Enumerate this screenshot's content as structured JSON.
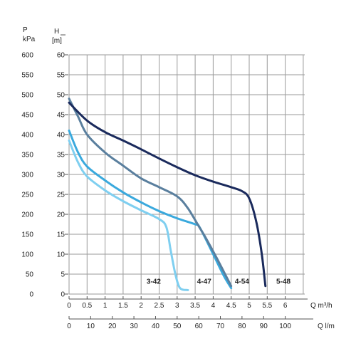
{
  "chart_data": {
    "type": "line",
    "left_axis_label_top": "P",
    "left_axis_label_bottom": "kPa",
    "right_axis_label_top": "H",
    "right_axis_label_bottom": "[m]",
    "bottom_axis_label_1": "Q m³/h",
    "bottom_axis_label_2": "Q l/m",
    "ylim": [
      0,
      60
    ],
    "xlim": [
      0,
      6.5
    ],
    "grid": true,
    "h_ticks": [
      "0",
      "5",
      "10",
      "15",
      "20",
      "25",
      "30",
      "35",
      "40",
      "45",
      "50",
      "55",
      "60"
    ],
    "p_ticks": [
      "0",
      "50",
      "100",
      "150",
      "200",
      "250",
      "300",
      "350",
      "400",
      "450",
      "500",
      "550",
      "600"
    ],
    "q_m3h_ticks": [
      {
        "x": 0,
        "label": "0"
      },
      {
        "x": 0.5,
        "label": "0.5"
      },
      {
        "x": 1,
        "label": "1"
      },
      {
        "x": 1.5,
        "label": "1.5"
      },
      {
        "x": 2,
        "label": "2"
      },
      {
        "x": 2.5,
        "label": "2.5"
      },
      {
        "x": 3,
        "label": "3"
      },
      {
        "x": 3.5,
        "label": "3.5"
      },
      {
        "x": 4,
        "label": "4"
      },
      {
        "x": 4.5,
        "label": "4.5"
      },
      {
        "x": 5,
        "label": "5"
      },
      {
        "x": 5.5,
        "label": "5.5"
      },
      {
        "x": 6,
        "label": "6"
      }
    ],
    "q_lm_ticks": [
      {
        "x": 0,
        "label": "0"
      },
      {
        "x": 0.6,
        "label": "10"
      },
      {
        "x": 1.2,
        "label": "20"
      },
      {
        "x": 1.8,
        "label": "30"
      },
      {
        "x": 2.4,
        "label": "40"
      },
      {
        "x": 3.0,
        "label": "50"
      },
      {
        "x": 3.6,
        "label": "60"
      },
      {
        "x": 4.2,
        "label": "70"
      },
      {
        "x": 4.8,
        "label": "80"
      },
      {
        "x": 5.4,
        "label": "90"
      },
      {
        "x": 6.0,
        "label": "100"
      }
    ],
    "series": [
      {
        "name": "3-42",
        "color": "#7fcff0",
        "points": [
          [
            0,
            38.5
          ],
          [
            0.25,
            33
          ],
          [
            0.5,
            29.5
          ],
          [
            1,
            26
          ],
          [
            1.5,
            23.3
          ],
          [
            2,
            21
          ],
          [
            2.5,
            18.8
          ],
          [
            2.7,
            16.8
          ],
          [
            2.82,
            11
          ],
          [
            2.95,
            5
          ],
          [
            3.08,
            1.5
          ],
          [
            3.3,
            1
          ]
        ]
      },
      {
        "name": "4-47",
        "color": "#3aa9dd",
        "points": [
          [
            0,
            41
          ],
          [
            0.25,
            35.5
          ],
          [
            0.5,
            32
          ],
          [
            1,
            28.5
          ],
          [
            1.5,
            25.5
          ],
          [
            2,
            23
          ],
          [
            2.5,
            20.8
          ],
          [
            3,
            19
          ],
          [
            3.5,
            17.5
          ],
          [
            3.62,
            16.8
          ],
          [
            4,
            10
          ],
          [
            4.3,
            4.5
          ],
          [
            4.5,
            1.5
          ]
        ]
      },
      {
        "name": "4-54",
        "color": "#5a7f9e",
        "points": [
          [
            0,
            49
          ],
          [
            0.25,
            44.5
          ],
          [
            0.5,
            40
          ],
          [
            1,
            35.5
          ],
          [
            1.5,
            32.2
          ],
          [
            2,
            29
          ],
          [
            2.5,
            26.8
          ],
          [
            3,
            24.5
          ],
          [
            3.3,
            21.5
          ],
          [
            3.6,
            17
          ],
          [
            3.8,
            14
          ],
          [
            4.1,
            9
          ],
          [
            4.5,
            2
          ]
        ]
      },
      {
        "name": "5-48",
        "color": "#1a2a5c",
        "points": [
          [
            0,
            48
          ],
          [
            0.5,
            43.5
          ],
          [
            1,
            40.6
          ],
          [
            1.5,
            38.5
          ],
          [
            2,
            36.3
          ],
          [
            2.5,
            34
          ],
          [
            3,
            31.8
          ],
          [
            3.5,
            29.8
          ],
          [
            4,
            28.2
          ],
          [
            4.5,
            26.8
          ],
          [
            4.8,
            25.8
          ],
          [
            5,
            24
          ],
          [
            5.2,
            18
          ],
          [
            5.35,
            10
          ],
          [
            5.45,
            2
          ]
        ]
      }
    ],
    "series_label_positions": [
      {
        "label": "3-42",
        "x": 2.35,
        "y": 2.6
      },
      {
        "label": "4-47",
        "x": 3.75,
        "y": 2.6
      },
      {
        "label": "4-54",
        "x": 4.8,
        "y": 2.6
      },
      {
        "label": "5-48",
        "x": 5.95,
        "y": 2.6
      }
    ]
  }
}
